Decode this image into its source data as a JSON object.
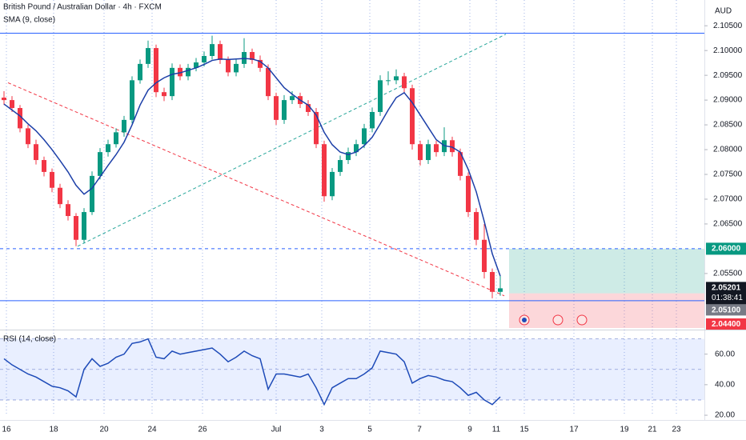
{
  "chart_data": [
    {
      "type": "candlestick",
      "title": "British Pound / Australian Dollar · 4h · FXCM",
      "currency": "AUD",
      "xlim": [
        -0.5,
        87.5
      ],
      "xticks": [
        {
          "value": 0.3,
          "label": "16"
        },
        {
          "value": 6.2,
          "label": "18"
        },
        {
          "value": 12.5,
          "label": "20"
        },
        {
          "value": 18.5,
          "label": "24"
        },
        {
          "value": 24.8,
          "label": "26"
        },
        {
          "value": 34,
          "label": "Jul"
        },
        {
          "value": 39.7,
          "label": "3"
        },
        {
          "value": 45.7,
          "label": "5"
        },
        {
          "value": 51.9,
          "label": "7"
        },
        {
          "value": 58.2,
          "label": "9"
        },
        {
          "value": 61.5,
          "label": "11"
        },
        {
          "value": 65,
          "label": "15"
        },
        {
          "value": 71.2,
          "label": "17"
        },
        {
          "value": 77.5,
          "label": "19"
        },
        {
          "value": 81,
          "label": "21"
        },
        {
          "value": 84,
          "label": "23"
        }
      ],
      "ylim": [
        2.044,
        2.1102
      ],
      "yticks": [
        {
          "value": 2.105,
          "label": "2.10500"
        },
        {
          "value": 2.1,
          "label": "2.10000"
        },
        {
          "value": 2.095,
          "label": "2.09500"
        },
        {
          "value": 2.09,
          "label": "2.09000"
        },
        {
          "value": 2.085,
          "label": "2.08500"
        },
        {
          "value": 2.08,
          "label": "2.08000"
        },
        {
          "value": 2.075,
          "label": "2.07500"
        },
        {
          "value": 2.07,
          "label": "2.07000"
        },
        {
          "value": 2.065,
          "label": "2.06500"
        },
        {
          "value": 2.055,
          "label": "2.05500"
        }
      ],
      "series": [
        {
          "up_color": "#089981",
          "down_color": "#f23645",
          "ohlc": [
            [
              2.0905,
              2.0918,
              2.089,
              2.09
            ],
            [
              2.09,
              2.0908,
              2.0876,
              2.0884
            ],
            [
              2.0884,
              2.089,
              2.0835,
              2.0843
            ],
            [
              2.0843,
              2.085,
              2.0803,
              2.0811
            ],
            [
              2.0811,
              2.082,
              2.077,
              2.0779
            ],
            [
              2.0779,
              2.0786,
              2.0746,
              2.0755
            ],
            [
              2.0755,
              2.0762,
              2.0714,
              2.0723
            ],
            [
              2.0723,
              2.0731,
              2.0682,
              2.069
            ],
            [
              2.069,
              2.0698,
              2.0657,
              2.0666
            ],
            [
              2.0666,
              2.0672,
              2.0605,
              2.0618
            ],
            [
              2.0618,
              2.0682,
              2.0612,
              2.0674
            ],
            [
              2.0674,
              2.0756,
              2.0668,
              2.0747
            ],
            [
              2.0747,
              2.0803,
              2.074,
              2.0795
            ],
            [
              2.0795,
              2.082,
              2.0786,
              2.0811
            ],
            [
              2.0811,
              2.0843,
              2.0804,
              2.0835
            ],
            [
              2.0835,
              2.0868,
              2.0826,
              2.086
            ],
            [
              2.086,
              2.0948,
              2.0853,
              2.094
            ],
            [
              2.094,
              2.0982,
              2.0933,
              2.0973
            ],
            [
              2.0973,
              2.102,
              2.0965,
              2.1005
            ],
            [
              2.1005,
              2.1012,
              2.0906,
              2.0916
            ],
            [
              2.0916,
              2.0925,
              2.0898,
              2.0908
            ],
            [
              2.0908,
              2.0974,
              2.09,
              2.0965
            ],
            [
              2.0965,
              2.0972,
              2.094,
              2.0948
            ],
            [
              2.0948,
              2.0973,
              2.094,
              2.0965
            ],
            [
              2.0965,
              2.0985,
              2.0958,
              2.0976
            ],
            [
              2.0976,
              2.0998,
              2.0968,
              2.0989
            ],
            [
              2.0989,
              2.103,
              2.0982,
              2.1013
            ],
            [
              2.1013,
              2.102,
              2.0973,
              2.0981
            ],
            [
              2.0981,
              2.0988,
              2.0948,
              2.0956
            ],
            [
              2.0956,
              2.0982,
              2.0948,
              2.0973
            ],
            [
              2.0973,
              2.1025,
              2.0965,
              2.0997
            ],
            [
              2.0997,
              2.1004,
              2.0973,
              2.0981
            ],
            [
              2.0981,
              2.099,
              2.0957,
              2.0965
            ],
            [
              2.0965,
              2.0972,
              2.09,
              2.0908
            ],
            [
              2.0908,
              2.0915,
              2.085,
              2.086
            ],
            [
              2.086,
              2.091,
              2.0852,
              2.09
            ],
            [
              2.09,
              2.0918,
              2.0892,
              2.0908
            ],
            [
              2.0908,
              2.0915,
              2.0884,
              2.0892
            ],
            [
              2.0892,
              2.09,
              2.0868,
              2.0876
            ],
            [
              2.0876,
              2.0884,
              2.0803,
              2.0811
            ],
            [
              2.0811,
              2.0818,
              2.0695,
              2.0706
            ],
            [
              2.0706,
              2.0763,
              2.0698,
              2.0755
            ],
            [
              2.0755,
              2.0788,
              2.0747,
              2.0779
            ],
            [
              2.0779,
              2.0804,
              2.0771,
              2.0795
            ],
            [
              2.0795,
              2.082,
              2.0787,
              2.0811
            ],
            [
              2.0811,
              2.0852,
              2.0803,
              2.0843
            ],
            [
              2.0843,
              2.0885,
              2.0835,
              2.0876
            ],
            [
              2.0876,
              2.095,
              2.0868,
              2.094
            ],
            [
              2.094,
              2.0958,
              2.093,
              2.094
            ],
            [
              2.094,
              2.0962,
              2.0932,
              2.0948
            ],
            [
              2.0948,
              2.0955,
              2.0915,
              2.0924
            ],
            [
              2.0924,
              2.0931,
              2.08,
              2.0811
            ],
            [
              2.0811,
              2.0818,
              2.0768,
              2.0779
            ],
            [
              2.0779,
              2.082,
              2.0771,
              2.0811
            ],
            [
              2.0811,
              2.0818,
              2.0786,
              2.0795
            ],
            [
              2.0795,
              2.0845,
              2.0787,
              2.0819
            ],
            [
              2.0819,
              2.0826,
              2.0786,
              2.0795
            ],
            [
              2.0795,
              2.0802,
              2.0738,
              2.0747
            ],
            [
              2.0747,
              2.0754,
              2.0664,
              2.0674
            ],
            [
              2.0674,
              2.0682,
              2.0607,
              2.0618
            ],
            [
              2.0618,
              2.065,
              2.054,
              2.0553
            ],
            [
              2.0553,
              2.056,
              2.05,
              2.0513
            ],
            [
              2.0513,
              2.0545,
              2.0505,
              2.05201
            ]
          ]
        },
        {
          "name": "SMA (9, close)",
          "color": "#1c3fa8",
          "values": [
            2.0892,
            2.088,
            2.0868,
            2.0852,
            2.0838,
            2.082,
            2.08,
            2.0778,
            2.0755,
            2.0728,
            2.071,
            2.0722,
            2.0745,
            2.0768,
            2.079,
            2.0815,
            2.085,
            2.089,
            2.092,
            2.0935,
            2.0945,
            2.0952,
            2.0955,
            2.096,
            2.0965,
            2.0972,
            2.098,
            2.0983,
            2.0982,
            2.0983,
            2.0984,
            2.0983,
            2.0978,
            2.0965,
            2.0945,
            2.0925,
            2.0912,
            2.09,
            2.089,
            2.087,
            2.0835,
            2.081,
            2.0795,
            2.079,
            2.0795,
            2.0808,
            2.0825,
            2.0852,
            2.088,
            2.0905,
            2.0915,
            2.0895,
            2.087,
            2.0845,
            2.082,
            2.0808,
            2.0805,
            2.0795,
            2.076,
            2.0715,
            2.0655,
            2.059,
            2.0545
          ]
        }
      ],
      "hlines": [
        {
          "value": 2.1035,
          "style": "solid"
        },
        {
          "value": 2.06,
          "style": "dashed"
        },
        {
          "value": 2.0495,
          "style": "solid"
        }
      ],
      "trendlines": [
        {
          "x": [
            9.2,
            62.7
          ],
          "y": [
            2.0605,
            2.1033
          ],
          "color": "#26a69a"
        },
        {
          "x": [
            0.5,
            62.5
          ],
          "y": [
            2.0935,
            2.0505
          ],
          "color": "#f23645"
        }
      ],
      "position": {
        "start": 63.1,
        "target": {
          "value": 2.06,
          "label": "2.06000"
        },
        "entry": {
          "value": 2.051,
          "label": "2.05100"
        },
        "stop": {
          "value": 2.044,
          "label": "2.04400"
        }
      },
      "last_price": {
        "value": 2.05201,
        "label": "2.05201",
        "countdown": "01:38:41"
      }
    },
    {
      "type": "line",
      "xlim": [
        -0.5,
        87.5
      ],
      "ylim": [
        19.5,
        74.5
      ],
      "yticks": [
        {
          "value": 60,
          "label": "60.00"
        },
        {
          "value": 40,
          "label": "40.00"
        },
        {
          "value": 20,
          "label": "20.00"
        }
      ],
      "levels": [
        30,
        50,
        70
      ],
      "series": [
        {
          "name": "RSI (14, close)",
          "color": "#1e4bb8",
          "values": [
            57,
            53,
            50,
            47,
            45,
            42,
            39,
            38,
            36,
            32,
            50,
            57,
            52,
            54,
            58,
            60,
            67,
            68,
            70,
            58,
            57,
            62,
            60,
            61,
            62,
            63,
            64,
            60,
            55,
            58,
            62,
            59,
            57,
            37,
            47,
            47,
            46,
            45,
            47,
            38,
            27,
            38,
            41,
            44,
            44,
            47,
            51,
            62,
            61,
            60,
            55,
            41,
            44,
            46,
            45,
            43,
            42,
            38,
            33,
            35,
            30,
            27,
            32
          ]
        }
      ]
    }
  ]
}
